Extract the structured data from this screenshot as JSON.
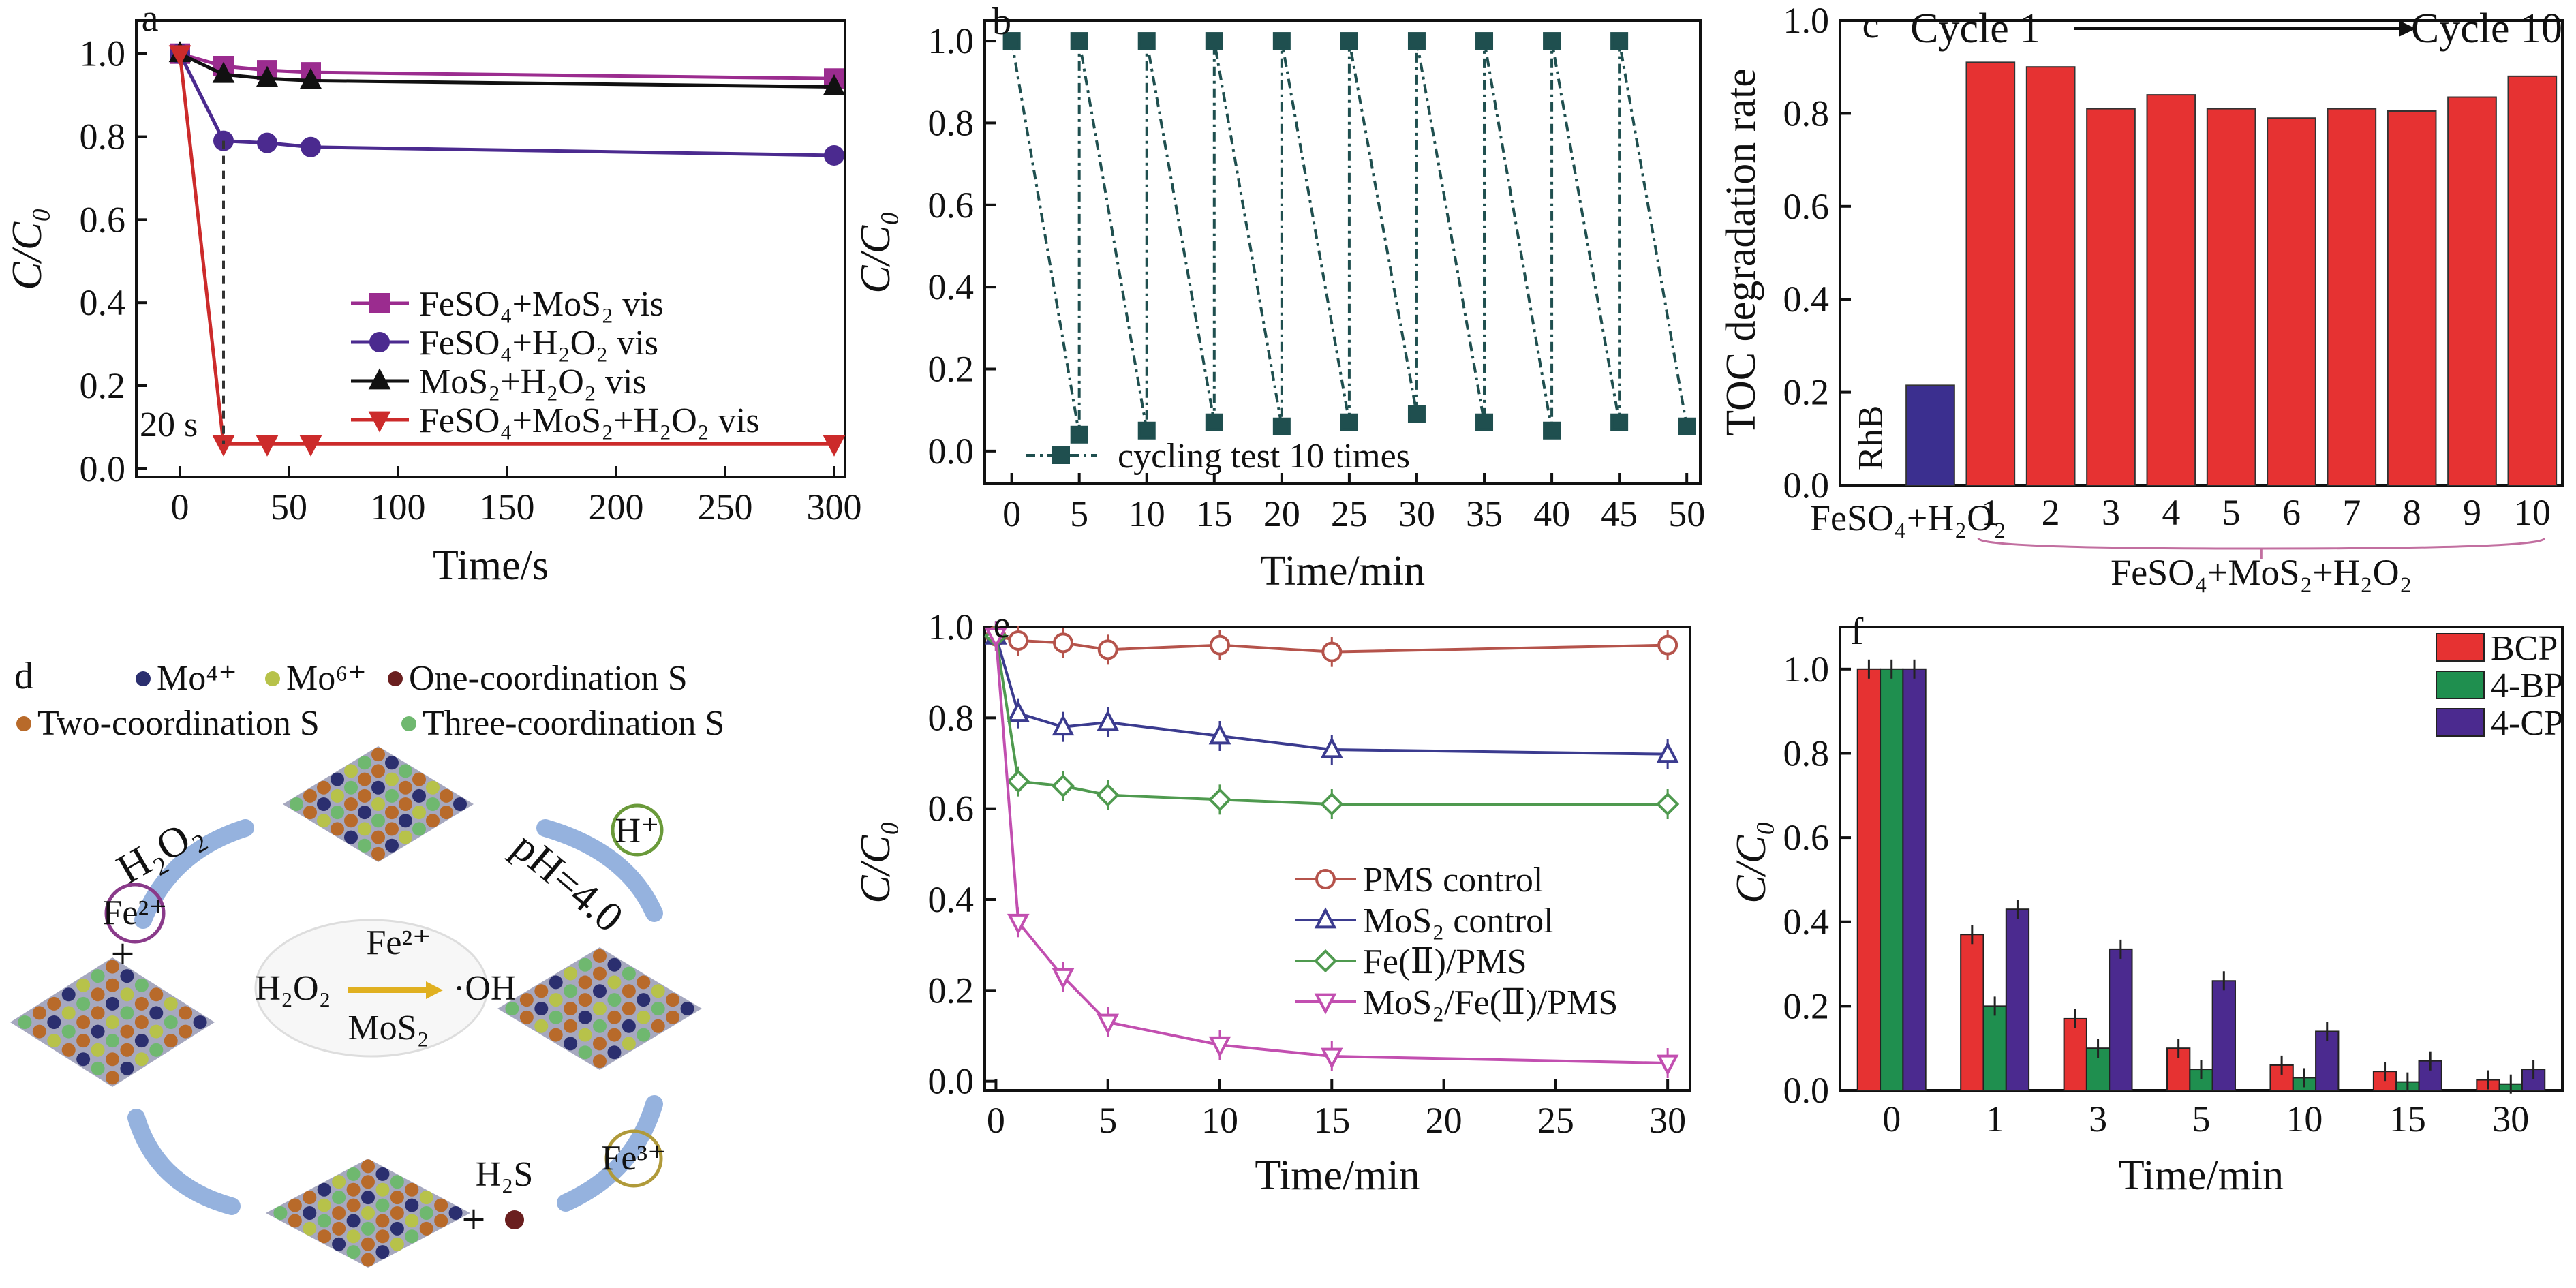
{
  "chart_data": [
    {
      "panel": "a",
      "type": "line",
      "xlabel": "Time/s",
      "ylabel": "C/C₀",
      "xlim": [
        -20,
        305
      ],
      "ylim": [
        -0.02,
        1.08
      ],
      "xticks": [
        "0",
        "50",
        "100",
        "150",
        "200",
        "250",
        "300"
      ],
      "yticks": [
        "0.0",
        "0.2",
        "0.4",
        "0.6",
        "0.8",
        "1.0"
      ],
      "annotation": "20 s",
      "legend_position": "center-right",
      "series": [
        {
          "name": "FeSO₄+MoS₂ vis",
          "color": "#9b2c8f",
          "marker": "square",
          "x": [
            0,
            20,
            40,
            60,
            300
          ],
          "y": [
            1.0,
            0.97,
            0.96,
            0.955,
            0.94
          ]
        },
        {
          "name": "FeSO₄+H₂O₂ vis",
          "color": "#4b2a8f",
          "marker": "circle",
          "x": [
            0,
            20,
            40,
            60,
            300
          ],
          "y": [
            1.0,
            0.79,
            0.785,
            0.775,
            0.755
          ]
        },
        {
          "name": "MoS₂+H₂O₂ vis",
          "color": "#111111",
          "marker": "triangle-up",
          "x": [
            0,
            20,
            40,
            60,
            300
          ],
          "y": [
            1.0,
            0.95,
            0.94,
            0.935,
            0.92
          ]
        },
        {
          "name": "FeSO₄+MoS₂+H₂O₂ vis",
          "color": "#cc2b2b",
          "marker": "triangle-down",
          "x": [
            0,
            20,
            40,
            60,
            300
          ],
          "y": [
            1.0,
            0.06,
            0.06,
            0.06,
            0.06
          ]
        }
      ]
    },
    {
      "panel": "b",
      "type": "line",
      "xlabel": "Time/min",
      "ylabel": "C/C₀",
      "xlim": [
        -2,
        51
      ],
      "ylim": [
        -0.08,
        1.05
      ],
      "xticks": [
        "0",
        "5",
        "10",
        "15",
        "20",
        "25",
        "30",
        "35",
        "40",
        "45",
        "50"
      ],
      "yticks": [
        "0.0",
        "0.2",
        "0.4",
        "0.6",
        "0.8",
        "1.0"
      ],
      "legend_position": "bottom",
      "series": [
        {
          "name": "cycling test 10 times",
          "color": "#1f4f4f",
          "marker": "square",
          "x": [
            0,
            5,
            5,
            10,
            10,
            15,
            15,
            20,
            20,
            25,
            25,
            30,
            30,
            35,
            35,
            40,
            40,
            45,
            45,
            50
          ],
          "y": [
            1.0,
            0.04,
            1.0,
            0.05,
            1.0,
            0.07,
            1.0,
            0.06,
            1.0,
            0.07,
            1.0,
            0.09,
            1.0,
            0.07,
            1.0,
            0.05,
            1.0,
            0.07,
            1.0,
            0.06
          ]
        }
      ]
    },
    {
      "panel": "c",
      "type": "bar",
      "ylabel": "TOC degradation rate",
      "ylim": [
        0,
        1.0
      ],
      "yticks": [
        "0.0",
        "0.2",
        "0.4",
        "0.6",
        "0.8",
        "1.0"
      ],
      "group_labels": [
        "FeSO₄+H₂O₂",
        "FeSO₄+MoS₂+H₂O₂"
      ],
      "cycle_annotation": {
        "start": "Cycle 1",
        "end": "Cycle 10"
      },
      "bars": [
        {
          "label": "RhB",
          "value": 0.0,
          "color": "#ffffff"
        },
        {
          "label": "",
          "value": 0.215,
          "color": "#3b2f8f"
        },
        {
          "label": "1",
          "value": 0.91,
          "color": "#e63232"
        },
        {
          "label": "2",
          "value": 0.9,
          "color": "#e63232"
        },
        {
          "label": "3",
          "value": 0.81,
          "color": "#e63232"
        },
        {
          "label": "4",
          "value": 0.84,
          "color": "#e63232"
        },
        {
          "label": "5",
          "value": 0.81,
          "color": "#e63232"
        },
        {
          "label": "6",
          "value": 0.79,
          "color": "#e63232"
        },
        {
          "label": "7",
          "value": 0.81,
          "color": "#e63232"
        },
        {
          "label": "8",
          "value": 0.805,
          "color": "#e63232"
        },
        {
          "label": "9",
          "value": 0.835,
          "color": "#e63232"
        },
        {
          "label": "10",
          "value": 0.88,
          "color": "#e63232"
        }
      ]
    },
    {
      "panel": "e",
      "type": "line",
      "xlabel": "Time/min",
      "ylabel": "C/C₀",
      "xlim": [
        -0.5,
        31
      ],
      "ylim": [
        -0.02,
        1.0
      ],
      "xticks": [
        "0",
        "5",
        "10",
        "15",
        "20",
        "25",
        "30"
      ],
      "yticks": [
        "0.0",
        "0.2",
        "0.4",
        "0.6",
        "0.8",
        "1.0"
      ],
      "legend_position": "center-right",
      "series": [
        {
          "name": "PMS control",
          "color": "#b5534b",
          "marker": "circle",
          "x": [
            0,
            1,
            3,
            5,
            10,
            15,
            30
          ],
          "y": [
            0.98,
            0.97,
            0.965,
            0.95,
            0.96,
            0.945,
            0.96
          ]
        },
        {
          "name": "MoS₂ control",
          "color": "#3b3b8f",
          "marker": "triangle-up",
          "x": [
            0,
            1,
            3,
            5,
            10,
            15,
            30
          ],
          "y": [
            0.98,
            0.81,
            0.78,
            0.79,
            0.76,
            0.73,
            0.72
          ]
        },
        {
          "name": "Fe(Ⅱ)/PMS",
          "color": "#4f9a4f",
          "marker": "diamond",
          "x": [
            0,
            1,
            3,
            5,
            10,
            15,
            30
          ],
          "y": [
            0.98,
            0.66,
            0.65,
            0.63,
            0.62,
            0.61,
            0.61
          ]
        },
        {
          "name": "MoS₂/Fe(Ⅱ)/PMS",
          "color": "#c24fb0",
          "marker": "triangle-down",
          "x": [
            0,
            1,
            3,
            5,
            10,
            15,
            30
          ],
          "y": [
            0.98,
            0.35,
            0.23,
            0.13,
            0.08,
            0.055,
            0.04
          ]
        }
      ]
    },
    {
      "panel": "f",
      "type": "bar",
      "xlabel": "Time/min",
      "ylabel": "C/C₀",
      "ylim": [
        0,
        1.1
      ],
      "yticks": [
        "0.0",
        "0.2",
        "0.4",
        "0.6",
        "0.8",
        "1.0"
      ],
      "categories": [
        "0",
        "1",
        "3",
        "5",
        "10",
        "15",
        "30"
      ],
      "legend_position": "top-right",
      "series": [
        {
          "name": "BCP",
          "color": "#e63232",
          "values": [
            1.0,
            0.37,
            0.17,
            0.1,
            0.06,
            0.045,
            0.025
          ]
        },
        {
          "name": "4-BP",
          "color": "#1f8f4f",
          "values": [
            1.0,
            0.2,
            0.1,
            0.05,
            0.03,
            0.02,
            0.015
          ]
        },
        {
          "name": "4-CP",
          "color": "#4b2a8f",
          "values": [
            1.0,
            0.43,
            0.335,
            0.26,
            0.14,
            0.07,
            0.05
          ]
        }
      ]
    }
  ],
  "diagram_d": {
    "legend": [
      "Mo⁴⁺",
      "Mo⁶⁺",
      "One-coordination S",
      "Two-coordination S",
      "Three-coordination S"
    ],
    "legend_colors": [
      "#2b2f6f",
      "#b7c24a",
      "#6a1f1f",
      "#b86a2a",
      "#6fb86f"
    ],
    "labels": {
      "h2o2": "H₂O₂",
      "fe2": "Fe²⁺",
      "hplus": "H⁺",
      "ph": "pH=4.0",
      "center_fe2": "Fe²⁺",
      "center_h2o2": "H₂O₂",
      "center_oh": "·OH",
      "center_mos2": "MoS₂",
      "h2s": "H₂S",
      "fe3": "Fe³⁺",
      "plus": "+"
    }
  },
  "panel_letters": [
    "a",
    "b",
    "c",
    "d",
    "e",
    "f"
  ]
}
